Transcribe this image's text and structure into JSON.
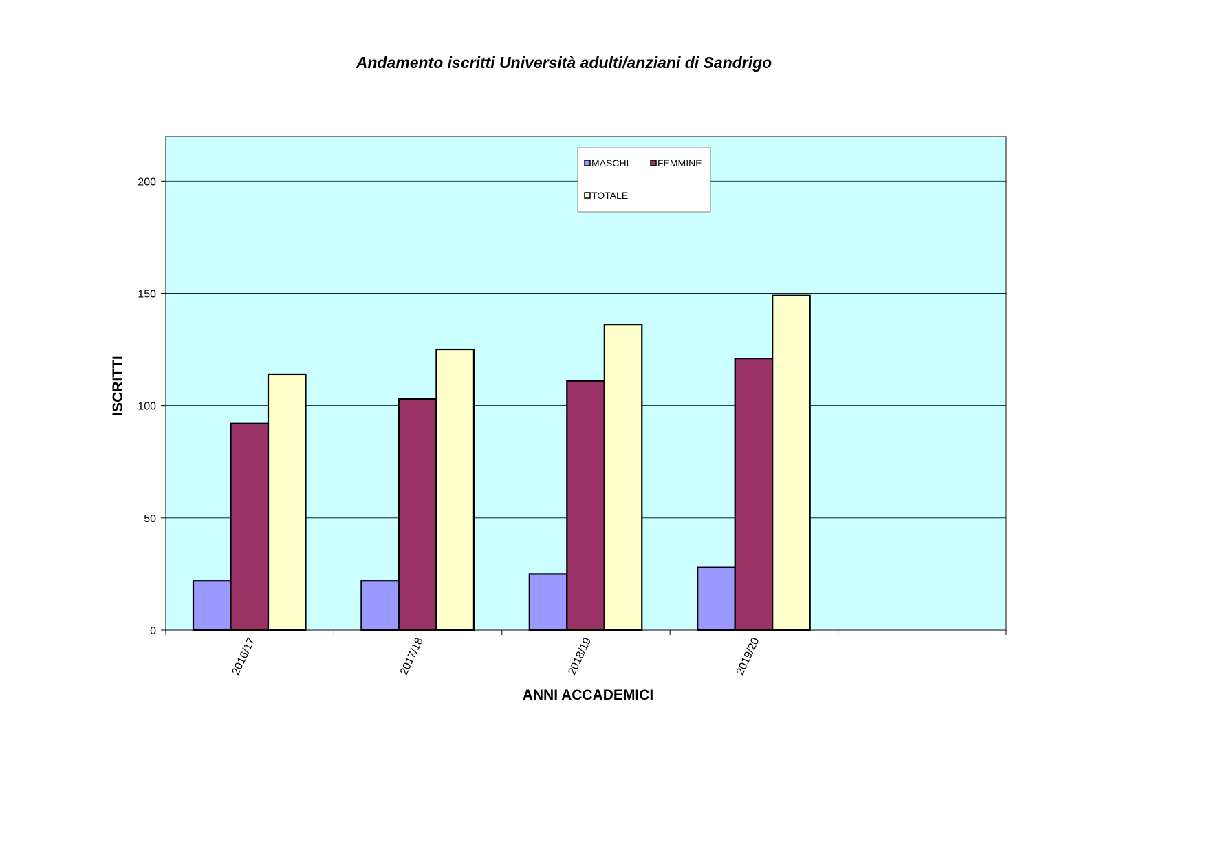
{
  "chart_data": {
    "type": "bar",
    "title": "Andamento iscritti Università adulti/anziani di Sandrigo",
    "xlabel": "ANNI ACCADEMICI",
    "ylabel": "ISCRITTI",
    "categories": [
      "2016/17",
      "2017/18",
      "2018/19",
      "2019/20"
    ],
    "category_slots": 5,
    "series": [
      {
        "name": "MASCHI",
        "values": [
          22,
          22,
          25,
          28
        ],
        "color": "#9999ff"
      },
      {
        "name": "FEMMINE",
        "values": [
          92,
          103,
          111,
          121
        ],
        "color": "#993366"
      },
      {
        "name": "TOTALE",
        "values": [
          114,
          125,
          136,
          149
        ],
        "color": "#ffffcc"
      }
    ],
    "ylim": [
      0,
      220
    ],
    "yticks": [
      0,
      50,
      100,
      150,
      200
    ],
    "grid": true,
    "legend_position": "top-center",
    "plot_background": "#ccffff",
    "gridline_color": "#000000",
    "bar_outline_color": "#000000"
  }
}
